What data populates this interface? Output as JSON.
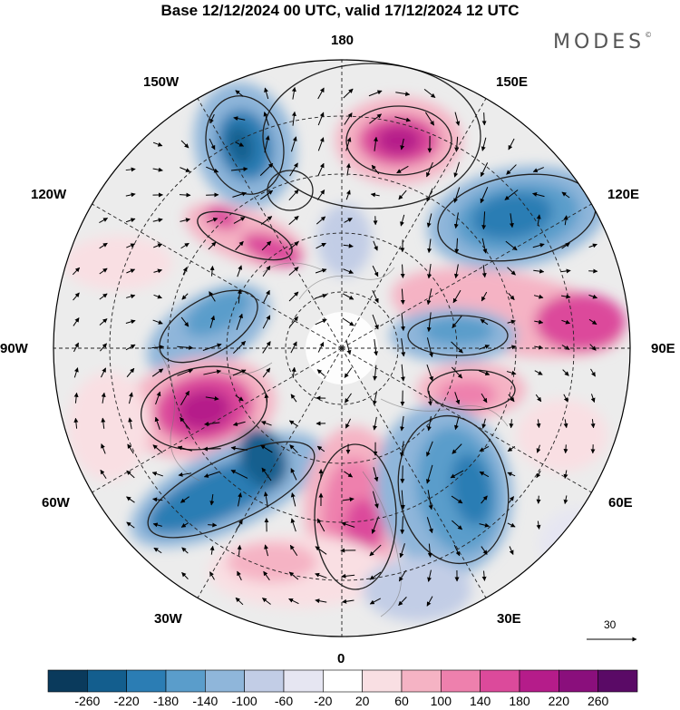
{
  "header": {
    "title": "Base 12/12/2024 00 UTC, valid 17/12/2024 12 UTC",
    "brand": "MODES",
    "brand_mark": "©"
  },
  "longitude_labels": {
    "top": "180",
    "upper_right": "150E",
    "right_upper": "120E",
    "right": "90E",
    "right_lower": "60E",
    "lower_right": "30E",
    "bottom": "0",
    "lower_left": "30W",
    "left_lower": "60W",
    "left": "90W",
    "left_upper": "120W",
    "upper_left": "150W"
  },
  "reference_vector": {
    "value": "30"
  },
  "colorbar": {
    "levels": [
      "-260",
      "-220",
      "-180",
      "-140",
      "-100",
      "-60",
      "-20",
      "20",
      "60",
      "100",
      "140",
      "180",
      "220",
      "260"
    ],
    "colors": [
      "#0a3a5c",
      "#135e8e",
      "#2b7db4",
      "#5a9dcb",
      "#8fb6da",
      "#c2cde6",
      "#e6e6f2",
      "#ffffff",
      "#f9dfe3",
      "#f5b3c4",
      "#ee80ad",
      "#dc4a9b",
      "#b51c8a",
      "#8a0f7c",
      "#5a0a66"
    ]
  },
  "map": {
    "projection": "north-polar-stereographic",
    "meridians_deg": [
      0,
      30,
      60,
      90,
      120,
      150,
      180,
      210,
      240,
      270,
      300,
      330
    ]
  }
}
